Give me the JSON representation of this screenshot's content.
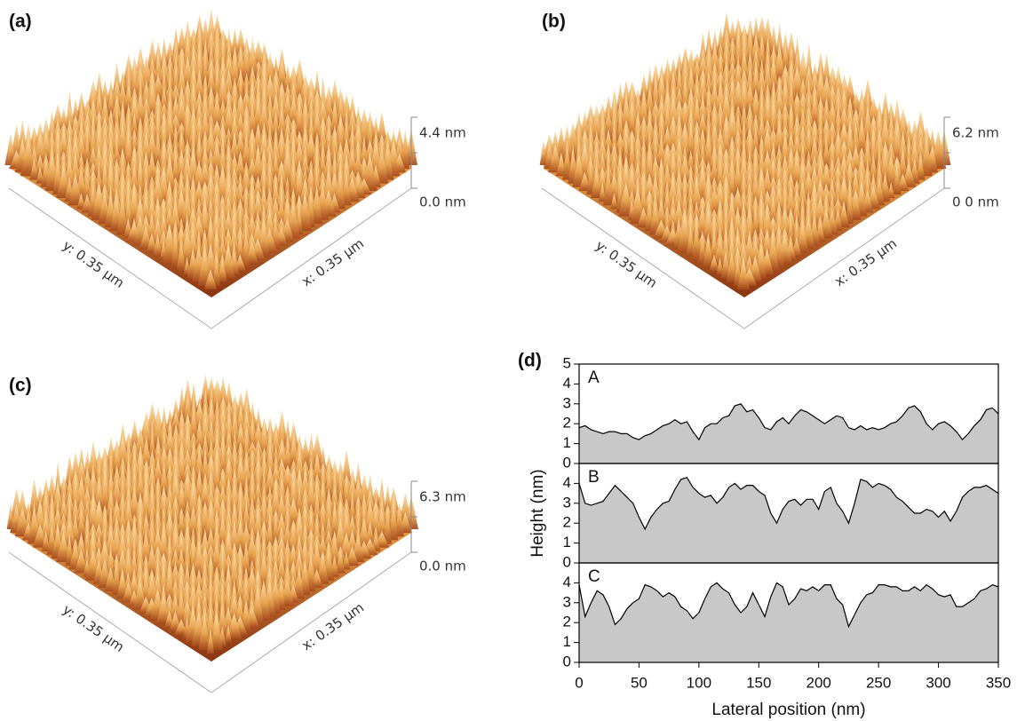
{
  "panels": [
    {
      "label": "(a)",
      "z_top": "4.4 nm",
      "z_bottom": "0.0 nm",
      "y_axis": "y: 0.35 µm",
      "x_axis": "x: 0.35 µm"
    },
    {
      "label": "(b)",
      "z_top": "6.2 nm",
      "z_bottom": "0 0 nm",
      "y_axis": "y: 0.35 µm",
      "x_axis": "x: 0.35 µm"
    },
    {
      "label": "(c)",
      "z_top": "6.3 nm",
      "z_bottom": "0.0 nm",
      "y_axis": "y: 0.35 µm",
      "x_axis": "x: 0.35 µm"
    }
  ],
  "chart_data": {
    "type": "line",
    "label": "(d)",
    "y_label": "Height (nm)",
    "x_label": "Lateral position (nm)",
    "x": [
      0,
      5,
      10,
      15,
      20,
      25,
      30,
      35,
      40,
      45,
      50,
      55,
      60,
      65,
      70,
      75,
      80,
      85,
      90,
      95,
      100,
      105,
      110,
      115,
      120,
      125,
      130,
      135,
      140,
      145,
      150,
      155,
      160,
      165,
      170,
      175,
      180,
      185,
      190,
      195,
      200,
      205,
      210,
      215,
      220,
      225,
      230,
      235,
      240,
      245,
      250,
      255,
      260,
      265,
      270,
      275,
      280,
      285,
      290,
      295,
      300,
      305,
      310,
      315,
      320,
      325,
      330,
      335,
      340,
      345,
      350
    ],
    "xlim": [
      0,
      350
    ],
    "xticks": [
      0,
      50,
      100,
      150,
      200,
      250,
      300,
      350
    ],
    "series": [
      {
        "name": "A",
        "color": "#000000",
        "fill": "#c8c8c8",
        "ylim": [
          0,
          5
        ],
        "yticks": [
          0,
          1,
          2,
          3,
          4,
          5
        ],
        "values": [
          1.8,
          1.9,
          1.7,
          1.6,
          1.5,
          1.6,
          1.6,
          1.5,
          1.5,
          1.3,
          1.2,
          1.4,
          1.5,
          1.7,
          1.9,
          2.0,
          2.2,
          2.0,
          2.1,
          1.6,
          1.2,
          1.8,
          2.0,
          2.0,
          2.3,
          2.4,
          2.9,
          3.0,
          2.6,
          2.7,
          2.3,
          1.8,
          1.7,
          2.1,
          2.3,
          2.0,
          2.4,
          2.7,
          2.6,
          2.4,
          2.2,
          2.0,
          2.2,
          2.4,
          2.3,
          1.8,
          1.7,
          1.9,
          1.7,
          1.8,
          1.7,
          1.8,
          2.0,
          2.1,
          2.4,
          2.8,
          2.9,
          2.6,
          2.0,
          1.7,
          2.0,
          2.1,
          1.9,
          1.6,
          1.2,
          1.5,
          1.9,
          2.2,
          2.7,
          2.8,
          2.5
        ]
      },
      {
        "name": "B",
        "color": "#000000",
        "fill": "#c8c8c8",
        "ylim": [
          0,
          5
        ],
        "yticks": [
          0,
          1,
          2,
          3,
          4
        ],
        "values": [
          4.0,
          3.0,
          2.9,
          3.0,
          3.1,
          3.5,
          3.9,
          3.6,
          3.3,
          3.0,
          2.3,
          1.7,
          2.3,
          2.7,
          3.0,
          3.1,
          3.7,
          4.2,
          4.3,
          3.8,
          3.5,
          3.3,
          3.4,
          3.0,
          3.3,
          3.8,
          4.0,
          3.7,
          3.9,
          3.9,
          3.6,
          3.4,
          2.5,
          2.0,
          2.7,
          3.1,
          3.2,
          2.9,
          3.2,
          3.2,
          2.7,
          3.6,
          3.8,
          3.0,
          2.6,
          2.0,
          3.0,
          4.2,
          4.1,
          3.8,
          4.0,
          3.9,
          3.7,
          3.3,
          3.1,
          2.8,
          2.5,
          2.5,
          2.7,
          2.6,
          2.3,
          2.6,
          2.1,
          2.6,
          3.3,
          3.6,
          3.8,
          3.8,
          3.9,
          3.7,
          3.5
        ]
      },
      {
        "name": "C",
        "color": "#000000",
        "fill": "#c8c8c8",
        "ylim": [
          0,
          5
        ],
        "yticks": [
          0,
          1,
          2,
          3,
          4
        ],
        "values": [
          3.9,
          2.3,
          3.0,
          3.6,
          3.4,
          2.8,
          1.9,
          2.2,
          2.7,
          3.0,
          3.2,
          3.9,
          3.8,
          3.6,
          3.3,
          3.5,
          3.3,
          2.8,
          2.6,
          2.2,
          2.5,
          3.2,
          3.8,
          4.0,
          3.7,
          3.5,
          2.9,
          2.5,
          2.8,
          3.5,
          2.9,
          2.3,
          3.3,
          4.0,
          3.8,
          2.9,
          3.2,
          3.7,
          3.6,
          3.8,
          3.6,
          3.9,
          3.9,
          3.2,
          2.9,
          1.8,
          2.4,
          3.0,
          3.4,
          3.5,
          3.9,
          3.9,
          3.8,
          3.8,
          3.6,
          3.6,
          3.8,
          3.6,
          3.9,
          3.7,
          3.4,
          3.3,
          3.4,
          2.8,
          2.8,
          3.0,
          3.2,
          3.6,
          3.7,
          3.9,
          3.8
        ]
      }
    ]
  }
}
